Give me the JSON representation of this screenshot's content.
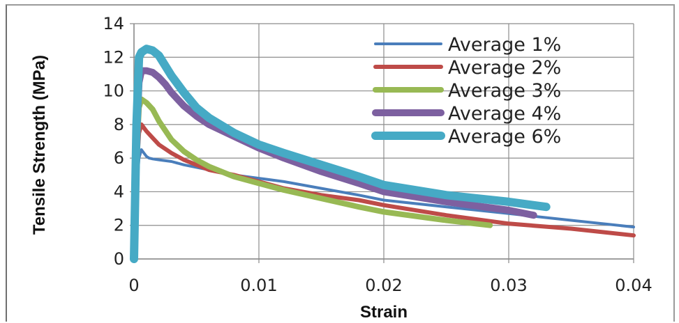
{
  "chart_data": {
    "type": "line",
    "title": "",
    "xlabel": "Strain",
    "ylabel": "Tensile Strength (MPa)",
    "xlim": [
      0,
      0.04
    ],
    "ylim": [
      0,
      14
    ],
    "xticks": [
      0,
      0.01,
      0.02,
      0.03,
      0.04
    ],
    "xtick_labels": [
      "0",
      "0.01",
      "0.02",
      "0.03",
      "0.04"
    ],
    "yticks": [
      0,
      2,
      4,
      6,
      8,
      10,
      12,
      14
    ],
    "ytick_labels": [
      "0",
      "2",
      "4",
      "6",
      "8",
      "10",
      "12",
      "14"
    ],
    "grid": true,
    "legend_position": "top-right",
    "series": [
      {
        "name": "Average 1%",
        "color": "#4a7ebb",
        "x": [
          0,
          0.0002,
          0.0004,
          0.0006,
          0.0008,
          0.001,
          0.0012,
          0.0015,
          0.002,
          0.003,
          0.004,
          0.006,
          0.008,
          0.01,
          0.012,
          0.015,
          0.018,
          0.02,
          0.025,
          0.03,
          0.035,
          0.04
        ],
        "y": [
          0,
          4.0,
          6.0,
          6.5,
          6.3,
          6.1,
          6.0,
          5.95,
          5.9,
          5.8,
          5.6,
          5.3,
          5.0,
          4.8,
          4.6,
          4.2,
          3.8,
          3.5,
          3.1,
          2.7,
          2.3,
          1.9
        ]
      },
      {
        "name": "Average 2%",
        "color": "#be4b48",
        "x": [
          0,
          0.0002,
          0.0004,
          0.0006,
          0.001,
          0.0015,
          0.002,
          0.003,
          0.004,
          0.005,
          0.006,
          0.008,
          0.01,
          0.012,
          0.015,
          0.018,
          0.02,
          0.025,
          0.03,
          0.035,
          0.04
        ],
        "y": [
          0,
          5.0,
          7.5,
          8.0,
          7.6,
          7.2,
          6.8,
          6.3,
          5.9,
          5.6,
          5.3,
          5.0,
          4.6,
          4.2,
          3.8,
          3.5,
          3.2,
          2.6,
          2.1,
          1.8,
          1.4
        ]
      },
      {
        "name": "Average 3%",
        "color": "#98b954",
        "x": [
          0,
          0.0002,
          0.0004,
          0.0006,
          0.001,
          0.0015,
          0.002,
          0.003,
          0.004,
          0.005,
          0.006,
          0.008,
          0.01,
          0.012,
          0.015,
          0.018,
          0.02,
          0.025,
          0.0285
        ],
        "y": [
          0,
          6.0,
          9.0,
          9.5,
          9.3,
          8.9,
          8.2,
          7.1,
          6.4,
          5.9,
          5.5,
          4.9,
          4.5,
          4.1,
          3.6,
          3.1,
          2.8,
          2.3,
          2.0
        ]
      },
      {
        "name": "Average 4%",
        "color": "#7d60a0",
        "x": [
          0,
          0.0002,
          0.0004,
          0.0006,
          0.001,
          0.0015,
          0.002,
          0.0025,
          0.003,
          0.004,
          0.005,
          0.006,
          0.008,
          0.01,
          0.012,
          0.015,
          0.018,
          0.02,
          0.025,
          0.03,
          0.032
        ],
        "y": [
          0,
          7.0,
          10.5,
          11.2,
          11.2,
          11.1,
          10.8,
          10.4,
          9.9,
          9.1,
          8.5,
          8.0,
          7.3,
          6.6,
          6.0,
          5.2,
          4.5,
          4.0,
          3.4,
          2.9,
          2.6
        ]
      },
      {
        "name": "Average 6%",
        "color": "#46aac5",
        "x": [
          0,
          0.0002,
          0.0004,
          0.0006,
          0.001,
          0.0015,
          0.002,
          0.0025,
          0.003,
          0.004,
          0.005,
          0.006,
          0.008,
          0.01,
          0.012,
          0.015,
          0.018,
          0.02,
          0.025,
          0.03,
          0.033
        ],
        "y": [
          0,
          8.0,
          12.0,
          12.3,
          12.5,
          12.4,
          12.1,
          11.5,
          10.9,
          9.9,
          9.0,
          8.4,
          7.5,
          6.8,
          6.3,
          5.6,
          4.9,
          4.4,
          3.8,
          3.4,
          3.1
        ]
      }
    ]
  }
}
